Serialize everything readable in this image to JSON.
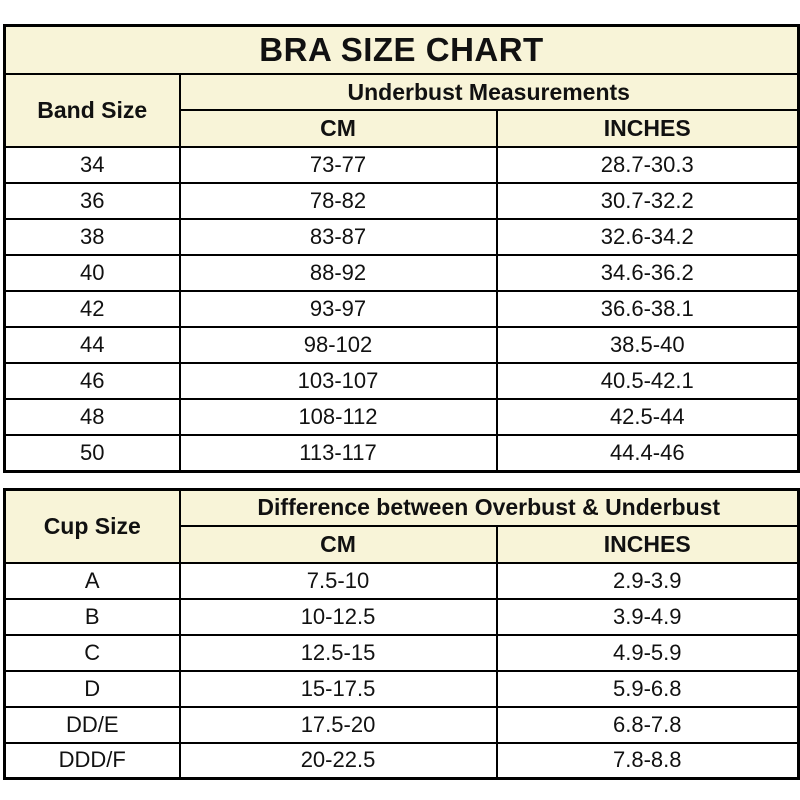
{
  "title": "BRA SIZE CHART",
  "colors": {
    "header_bg": "#F8F4D8",
    "border": "#000000",
    "text": "#111111",
    "row_bg": "#ffffff"
  },
  "chart_data": [
    {
      "type": "table",
      "name": "band-size-table",
      "corner_header": "Band Size",
      "group_header": "Underbust Measurements",
      "sub_headers": [
        "CM",
        "INCHES"
      ],
      "rows": [
        [
          "34",
          "73-77",
          "28.7-30.3"
        ],
        [
          "36",
          "78-82",
          "30.7-32.2"
        ],
        [
          "38",
          "83-87",
          "32.6-34.2"
        ],
        [
          "40",
          "88-92",
          "34.6-36.2"
        ],
        [
          "42",
          "93-97",
          "36.6-38.1"
        ],
        [
          "44",
          "98-102",
          "38.5-40"
        ],
        [
          "46",
          "103-107",
          "40.5-42.1"
        ],
        [
          "48",
          "108-112",
          "42.5-44"
        ],
        [
          "50",
          "113-117",
          "44.4-46"
        ]
      ]
    },
    {
      "type": "table",
      "name": "cup-size-table",
      "corner_header": "Cup Size",
      "group_header": "Difference between Overbust & Underbust",
      "sub_headers": [
        "CM",
        "INCHES"
      ],
      "rows": [
        [
          "A",
          "7.5-10",
          "2.9-3.9"
        ],
        [
          "B",
          "10-12.5",
          "3.9-4.9"
        ],
        [
          "C",
          "12.5-15",
          "4.9-5.9"
        ],
        [
          "D",
          "15-17.5",
          "5.9-6.8"
        ],
        [
          "DD/E",
          "17.5-20",
          "6.8-7.8"
        ],
        [
          "DDD/F",
          "20-22.5",
          "7.8-8.8"
        ]
      ]
    }
  ]
}
